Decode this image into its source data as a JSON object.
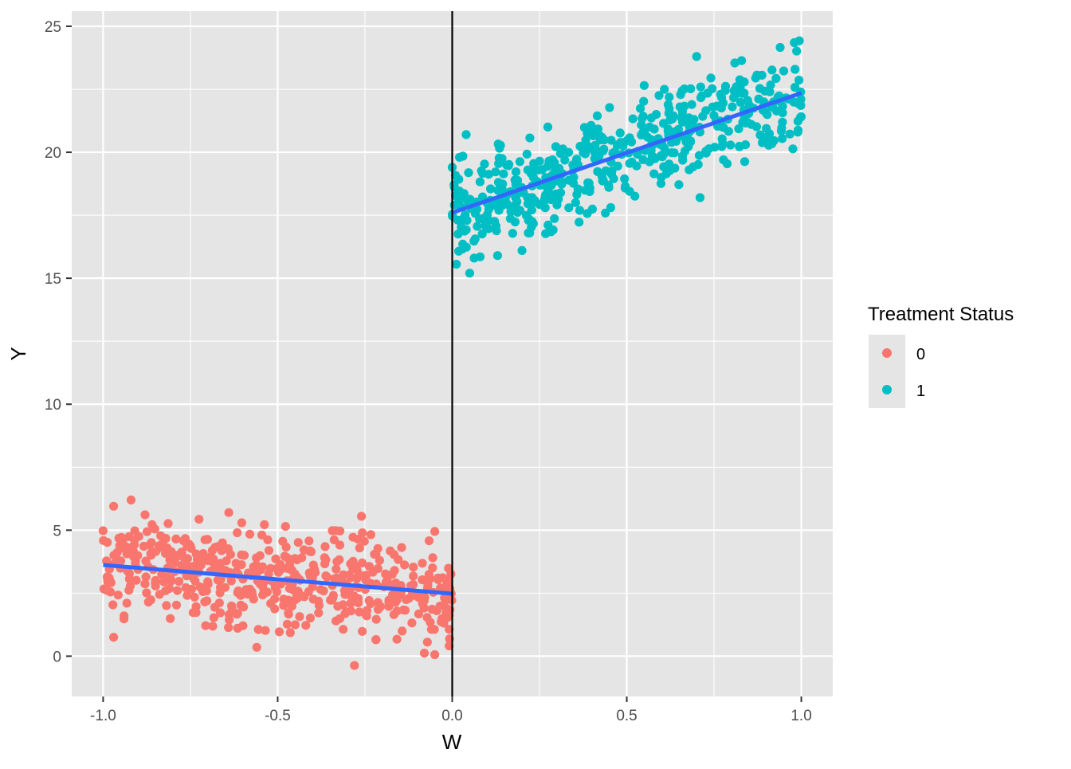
{
  "chart_data": {
    "type": "scatter",
    "title": "",
    "xlabel": "W",
    "ylabel": "Y",
    "xlim": [
      -1.09,
      1.09
    ],
    "ylim": [
      -1.6,
      25.6
    ],
    "x_ticks": [
      -1.0,
      -0.5,
      0.0,
      0.5,
      1.0
    ],
    "x_tick_labels": [
      "-1.0",
      "-0.5",
      "0.0",
      "0.5",
      "1.0"
    ],
    "y_ticks": [
      0,
      5,
      10,
      15,
      20,
      25
    ],
    "y_tick_labels": [
      "0",
      "5",
      "10",
      "15",
      "20",
      "25"
    ],
    "grid": true,
    "background": "#e5e5e5",
    "cutoff_line": {
      "x": 0.0,
      "color": "#000000"
    },
    "legend": {
      "title": "Treatment Status",
      "position": "right",
      "entries": [
        {
          "label": "0",
          "color": "#f8766d"
        },
        {
          "label": "1",
          "color": "#00bfc4"
        }
      ]
    },
    "fit_color": "#3366ff",
    "series": [
      {
        "name": "0",
        "color": "#f8766d",
        "generated_cloud": {
          "n": 500,
          "x_range": [
            -1.0,
            0.0
          ],
          "line": {
            "intercept": 2.5,
            "slope": -1.15
          },
          "noise_sd": 1.0
        },
        "fit": {
          "x": [
            -1.0,
            0.0
          ],
          "y": [
            3.62,
            2.48
          ]
        },
        "points": [
          {
            "x": -0.97,
            "y": 0.75
          },
          {
            "x": -0.94,
            "y": 1.6
          },
          {
            "x": -0.97,
            "y": 5.95
          },
          {
            "x": -0.92,
            "y": 6.2
          },
          {
            "x": -0.64,
            "y": 5.7
          },
          {
            "x": -0.28,
            "y": -0.37
          },
          {
            "x": -0.26,
            "y": 5.55
          },
          {
            "x": -0.08,
            "y": 0.12
          },
          {
            "x": -0.05,
            "y": 0.06
          },
          {
            "x": -0.56,
            "y": 0.35
          },
          {
            "x": -0.05,
            "y": 4.95
          },
          {
            "x": -1.0,
            "y": 4.98
          },
          {
            "x": -0.01,
            "y": 1.8
          }
        ]
      },
      {
        "name": "1",
        "color": "#00bfc4",
        "generated_cloud": {
          "n": 500,
          "x_range": [
            0.0,
            1.0
          ],
          "line": {
            "intercept": 17.6,
            "slope": 4.75
          },
          "noise_sd": 1.0
        },
        "fit": {
          "x": [
            0.0,
            1.0
          ],
          "y": [
            17.6,
            22.35
          ]
        },
        "points": [
          {
            "x": 0.05,
            "y": 15.2
          },
          {
            "x": 0.08,
            "y": 15.85
          },
          {
            "x": 0.13,
            "y": 15.9
          },
          {
            "x": 0.2,
            "y": 16.1
          },
          {
            "x": 0.04,
            "y": 20.7
          },
          {
            "x": 0.7,
            "y": 23.8
          },
          {
            "x": 0.98,
            "y": 24.35
          },
          {
            "x": 0.84,
            "y": 20.3
          },
          {
            "x": 0.99,
            "y": 20.8
          },
          {
            "x": 0.71,
            "y": 18.2
          },
          {
            "x": 0.0,
            "y": 19.4
          },
          {
            "x": 0.55,
            "y": 22.65
          }
        ]
      }
    ]
  }
}
